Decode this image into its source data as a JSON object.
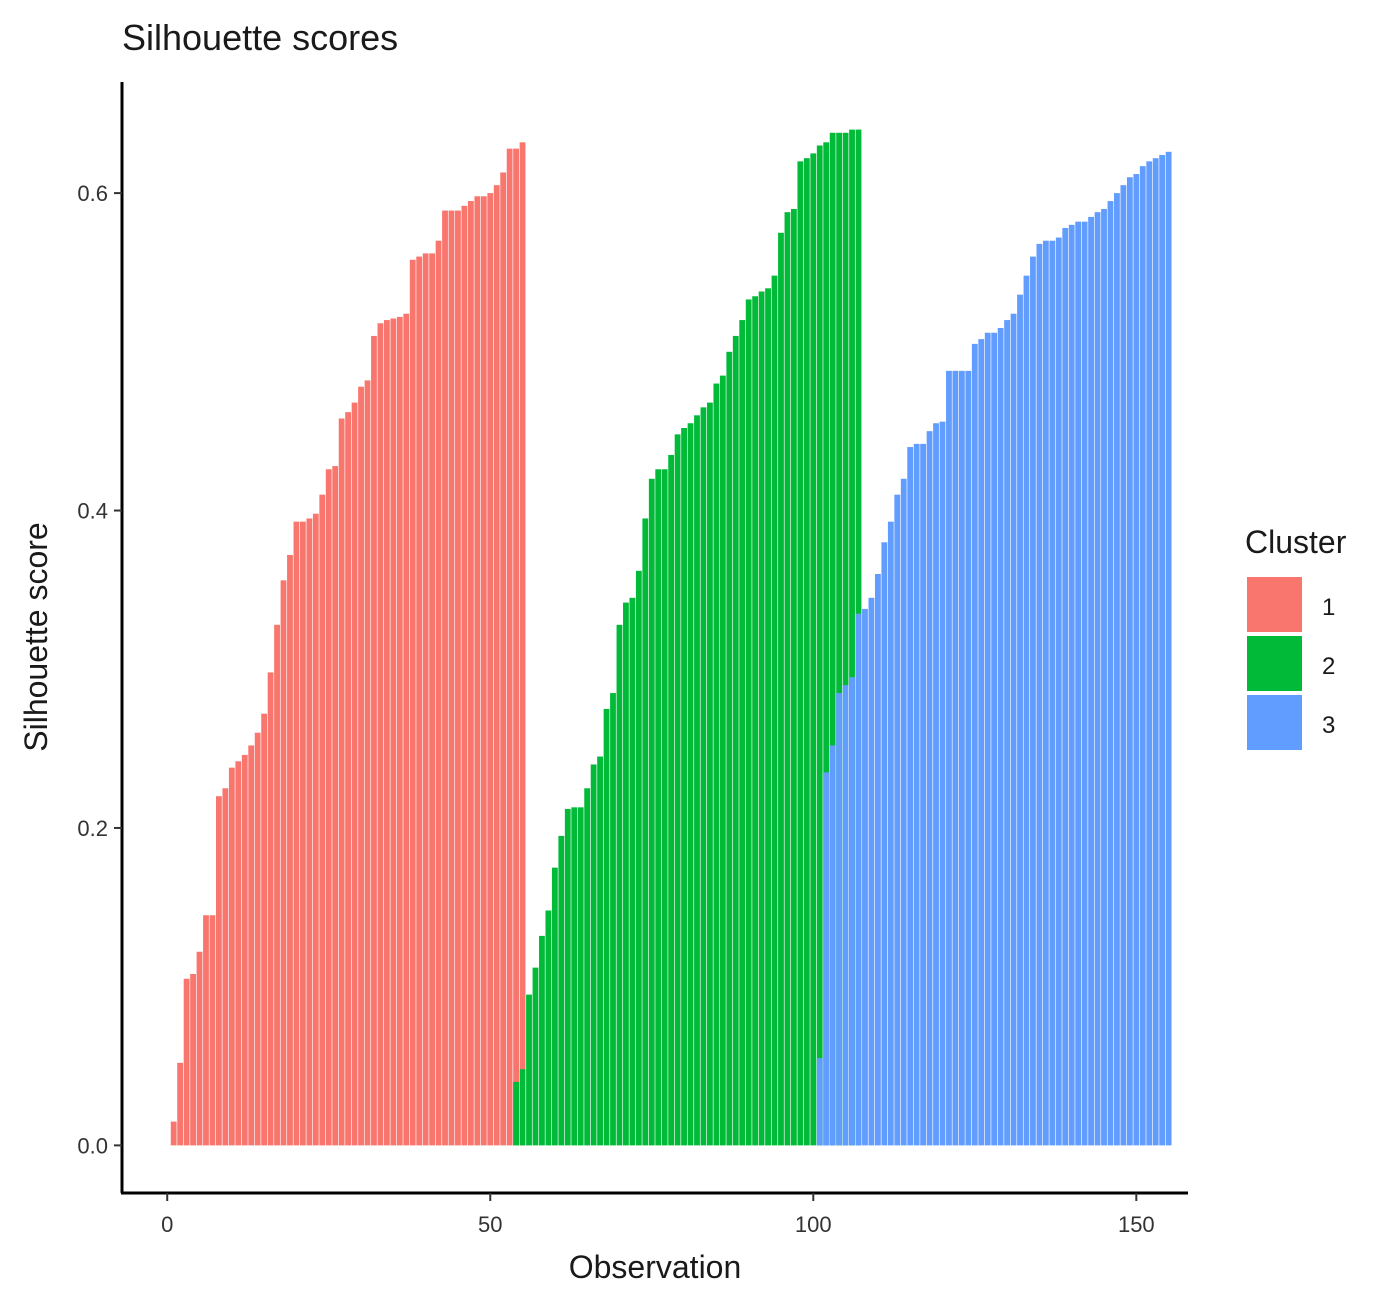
{
  "chart_data": {
    "type": "bar",
    "title": "Silhouette scores",
    "xlabel": "Observation",
    "ylabel": "Silhouette score",
    "xlim": [
      -7,
      158
    ],
    "ylim": [
      -0.03,
      0.67
    ],
    "xticks": [
      0,
      50,
      100,
      150
    ],
    "xtick_labels": [
      "0",
      "50",
      "100",
      "150"
    ],
    "yticks": [
      0.0,
      0.2,
      0.4,
      0.6
    ],
    "ytick_labels": [
      "0.0",
      "0.2",
      "0.4",
      "0.6"
    ],
    "grid": false,
    "legend": {
      "title": "Cluster",
      "position": "right",
      "entries": [
        {
          "label": "1",
          "color": "#F8766D"
        },
        {
          "label": "2",
          "color": "#00BA38"
        },
        {
          "label": "3",
          "color": "#619CFF"
        }
      ]
    },
    "series": [
      {
        "name": "1",
        "color": "#F8766D",
        "x_start": 1,
        "values": [
          0.015,
          0.052,
          0.105,
          0.108,
          0.122,
          0.145,
          0.145,
          0.22,
          0.225,
          0.238,
          0.242,
          0.246,
          0.252,
          0.26,
          0.272,
          0.298,
          0.328,
          0.356,
          0.372,
          0.393,
          0.393,
          0.395,
          0.398,
          0.41,
          0.426,
          0.428,
          0.458,
          0.462,
          0.468,
          0.478,
          0.482,
          0.51,
          0.518,
          0.52,
          0.521,
          0.522,
          0.524,
          0.558,
          0.56,
          0.562,
          0.562,
          0.57,
          0.589,
          0.589,
          0.589,
          0.592,
          0.595,
          0.598,
          0.598,
          0.6,
          0.605,
          0.613,
          0.628,
          0.628,
          0.632
        ]
      },
      {
        "name": "2",
        "color": "#00BA38",
        "x_start": 54,
        "values": [
          0.04,
          0.048,
          0.095,
          0.112,
          0.132,
          0.148,
          0.175,
          0.195,
          0.212,
          0.213,
          0.213,
          0.225,
          0.24,
          0.245,
          0.275,
          0.285,
          0.328,
          0.342,
          0.345,
          0.362,
          0.395,
          0.42,
          0.426,
          0.426,
          0.435,
          0.448,
          0.452,
          0.455,
          0.46,
          0.465,
          0.468,
          0.48,
          0.485,
          0.5,
          0.51,
          0.52,
          0.533,
          0.535,
          0.538,
          0.54,
          0.548,
          0.575,
          0.588,
          0.59,
          0.62,
          0.622,
          0.625,
          0.63,
          0.632,
          0.638,
          0.638,
          0.638,
          0.64,
          0.64
        ]
      },
      {
        "name": "3",
        "color": "#619CFF",
        "x_start": 101,
        "values": [
          0.055,
          0.235,
          0.252,
          0.285,
          0.29,
          0.295,
          0.335,
          0.338,
          0.345,
          0.36,
          0.38,
          0.393,
          0.41,
          0.42,
          0.44,
          0.442,
          0.442,
          0.45,
          0.455,
          0.456,
          0.488,
          0.488,
          0.488,
          0.488,
          0.505,
          0.508,
          0.512,
          0.512,
          0.515,
          0.52,
          0.524,
          0.536,
          0.548,
          0.56,
          0.568,
          0.57,
          0.57,
          0.572,
          0.578,
          0.58,
          0.582,
          0.582,
          0.585,
          0.588,
          0.59,
          0.595,
          0.6,
          0.605,
          0.61,
          0.612,
          0.617,
          0.62,
          0.622,
          0.624,
          0.626
        ]
      }
    ]
  }
}
